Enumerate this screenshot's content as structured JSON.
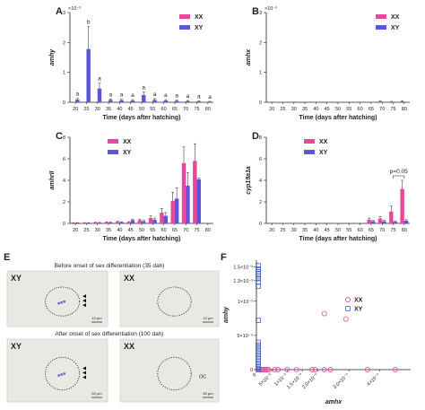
{
  "chart_data": [
    {
      "id": "A",
      "type": "bar",
      "panel_label": "A",
      "ylabel": "amhy",
      "xlabel": "Time (days after hatching)",
      "y_exponent": "×10⁻³",
      "ylim": [
        0,
        0.003
      ],
      "yticks": [
        0,
        0.001,
        0.002,
        0.003
      ],
      "ytick_labels": [
        "0",
        "1",
        "2",
        "3"
      ],
      "categories": [
        "20",
        "25",
        "30",
        "35",
        "40",
        "45",
        "50",
        "55",
        "60",
        "65",
        "70",
        "75",
        "80"
      ],
      "series": [
        {
          "name": "XX",
          "color": "#e8479d",
          "values": [
            0,
            0,
            0,
            0,
            0,
            0,
            0,
            0,
            0,
            0,
            0,
            0,
            0
          ],
          "err": [
            0,
            0,
            0,
            0,
            0,
            0,
            0,
            0,
            0,
            0,
            0,
            0,
            0
          ]
        },
        {
          "name": "XY",
          "color": "#5a56d6",
          "values": [
            9e-05,
            0.00178,
            0.00046,
            8e-05,
            7e-05,
            6e-05,
            0.00024,
            8e-05,
            6e-05,
            5e-05,
            4e-05,
            3e-05,
            2e-05
          ],
          "err": [
            4e-05,
            0.00075,
            0.00018,
            3e-05,
            3e-05,
            3e-05,
            0.0001,
            4e-05,
            3e-05,
            2e-05,
            2e-05,
            1e-05,
            1e-05
          ]
        }
      ],
      "annotations": [
        {
          "category": "20",
          "text": "a"
        },
        {
          "category": "25",
          "text": "b"
        },
        {
          "category": "30",
          "text": "a"
        },
        {
          "category": "35",
          "text": "a"
        },
        {
          "category": "40",
          "text": "a"
        },
        {
          "category": "45",
          "text": "a"
        },
        {
          "category": "50",
          "text": "a"
        },
        {
          "category": "55",
          "text": "a"
        },
        {
          "category": "60",
          "text": "a"
        },
        {
          "category": "65",
          "text": "a"
        },
        {
          "category": "70",
          "text": "a"
        },
        {
          "category": "75",
          "text": "a"
        },
        {
          "category": "80",
          "text": "a"
        }
      ],
      "legend": "top-right"
    },
    {
      "id": "B",
      "type": "bar",
      "panel_label": "B",
      "ylabel": "amhx",
      "xlabel": "Time (days after hatching)",
      "y_exponent": "×10⁻³",
      "ylim": [
        0,
        0.003
      ],
      "yticks": [
        0,
        0.001,
        0.002,
        0.003
      ],
      "ytick_labels": [
        "0",
        "1",
        "2",
        "3"
      ],
      "categories": [
        "20",
        "25",
        "30",
        "35",
        "40",
        "45",
        "50",
        "55",
        "60",
        "65",
        "70",
        "75",
        "80"
      ],
      "series": [
        {
          "name": "XX",
          "color": "#e8479d",
          "values": [
            0,
            0,
            0,
            0,
            0,
            0,
            0,
            0,
            0,
            0,
            3e-05,
            2e-05,
            3e-05
          ],
          "err": [
            0,
            0,
            0,
            0,
            0,
            0,
            0,
            0,
            0,
            0,
            2e-05,
            1e-05,
            2e-05
          ]
        },
        {
          "name": "XY",
          "color": "#5a56d6",
          "values": [
            0,
            0,
            0,
            0,
            0,
            0,
            0,
            0,
            0,
            0,
            0,
            0,
            0
          ],
          "err": [
            0,
            0,
            0,
            0,
            0,
            0,
            0,
            0,
            0,
            0,
            0,
            0,
            0
          ]
        }
      ],
      "legend": "top-right"
    },
    {
      "id": "C",
      "type": "bar",
      "panel_label": "C",
      "ylabel": "amhrII",
      "xlabel": "Time (days after hatching)",
      "ylim": [
        0,
        8
      ],
      "yticks": [
        0,
        2,
        4,
        6,
        8
      ],
      "ytick_labels": [
        "0",
        "2",
        "4",
        "6",
        "8"
      ],
      "categories": [
        "20",
        "25",
        "30",
        "35",
        "40",
        "45",
        "50",
        "55",
        "60",
        "65",
        "70",
        "75",
        "80"
      ],
      "series": [
        {
          "name": "XX",
          "color": "#e8479d",
          "values": [
            0.05,
            0.05,
            0.08,
            0.1,
            0.15,
            0.1,
            0.3,
            0.5,
            1.0,
            2.1,
            5.6,
            5.8,
            0
          ],
          "err": [
            0.02,
            0.02,
            0.03,
            0.04,
            0.05,
            0.05,
            0.1,
            0.2,
            0.4,
            0.8,
            1.5,
            1.6,
            0
          ]
        },
        {
          "name": "XY",
          "color": "#5a56d6",
          "values": [
            0.05,
            0.05,
            0.06,
            0.08,
            0.1,
            0.3,
            0.2,
            0.35,
            0.7,
            2.3,
            3.5,
            4.1,
            0
          ],
          "err": [
            0.02,
            0.02,
            0.03,
            0.03,
            0.05,
            0.1,
            0.08,
            0.15,
            0.3,
            1.0,
            1.2,
            0.1,
            0
          ]
        }
      ],
      "legend": "top-left"
    },
    {
      "id": "D",
      "type": "bar",
      "panel_label": "D",
      "ylabel": "cyp19a1a",
      "xlabel": "Time (days after hatching)",
      "ylim": [
        0,
        8
      ],
      "yticks": [
        0,
        2,
        4,
        6,
        8
      ],
      "ytick_labels": [
        "0",
        "2",
        "4",
        "6",
        "8"
      ],
      "categories": [
        "20",
        "25",
        "30",
        "35",
        "40",
        "45",
        "50",
        "55",
        "60",
        "65",
        "70",
        "75",
        "80"
      ],
      "series": [
        {
          "name": "XX",
          "color": "#e8479d",
          "values": [
            0,
            0,
            0,
            0,
            0,
            0,
            0,
            0,
            0,
            0.35,
            0.45,
            1.1,
            3.2
          ],
          "err": [
            0,
            0,
            0,
            0,
            0,
            0,
            0,
            0,
            0,
            0.15,
            0.2,
            0.5,
            0.8
          ]
        },
        {
          "name": "XY",
          "color": "#5a56d6",
          "values": [
            0,
            0,
            0,
            0,
            0,
            0,
            0,
            0,
            0,
            0.2,
            0.2,
            0.15,
            0.25
          ],
          "err": [
            0,
            0,
            0,
            0,
            0,
            0,
            0,
            0,
            0,
            0.08,
            0.08,
            0.06,
            0.1
          ]
        }
      ],
      "significance": {
        "from": "75",
        "to": "80",
        "text": "p=0.05"
      },
      "legend": "top-left"
    },
    {
      "id": "F",
      "type": "scatter",
      "panel_label": "F",
      "xlabel": "amhx",
      "ylabel": "amhy",
      "xlim": [
        0,
        5e-05
      ],
      "ylim": [
        0,
        0.0016
      ],
      "xticks": [
        0,
        5e-06,
        1e-05,
        1.5e-05,
        2e-05,
        3e-05,
        4e-05
      ],
      "xtick_labels": [
        "0",
        "5×10⁻⁶",
        "1×10⁻⁵",
        "1.5×10⁻⁵",
        "2.0×10⁻⁵",
        "3.0×10⁻⁵",
        "4×10⁻⁵"
      ],
      "yticks": [
        0,
        0.0005,
        0.001,
        0.0013,
        0.0015
      ],
      "ytick_labels": [
        "0",
        "5×10⁻⁴",
        "1×10⁻³",
        "1.3×10⁻³",
        "1.5×10⁻³"
      ],
      "series": [
        {
          "name": "XX",
          "marker": "circle",
          "color": "#e8479d",
          "points": [
            [
              5e-07,
              0
            ],
            [
              1e-06,
              0
            ],
            [
              1.5e-06,
              0
            ],
            [
              2e-06,
              0
            ],
            [
              2.5e-06,
              0
            ],
            [
              3e-06,
              0
            ],
            [
              3.5e-06,
              0
            ],
            [
              4e-06,
              0
            ],
            [
              6e-06,
              0
            ],
            [
              7e-06,
              0
            ],
            [
              1e-05,
              0
            ],
            [
              1.3e-05,
              0
            ],
            [
              1.8e-05,
              0
            ],
            [
              1.9e-05,
              0
            ],
            [
              2.2e-05,
              0
            ],
            [
              2.4e-05,
              0
            ],
            [
              3.6e-05,
              0
            ],
            [
              4.5e-05,
              0
            ],
            [
              2.2e-05,
              0.00082
            ],
            [
              2.9e-05,
              0.00074
            ]
          ]
        },
        {
          "name": "XY",
          "marker": "square",
          "color": "#3d5fc4",
          "points": [
            [
              0,
              0.00152
            ],
            [
              0,
              0.00147
            ],
            [
              0,
              0.00143
            ],
            [
              0,
              0.0014
            ],
            [
              0,
              0.00137
            ],
            [
              0,
              0.00133
            ],
            [
              0,
              0.00128
            ],
            [
              0,
              0.00122
            ],
            [
              0,
              0.00072
            ],
            [
              0,
              0.0004
            ],
            [
              0,
              0.00036
            ],
            [
              0,
              0.00032
            ],
            [
              0,
              0.00028
            ],
            [
              0,
              0.00024
            ],
            [
              0,
              0.0002
            ],
            [
              0,
              0.00016
            ],
            [
              0,
              0.00012
            ],
            [
              0,
              8e-05
            ],
            [
              0,
              4e-05
            ],
            [
              0,
              2e-05
            ],
            [
              0,
              0
            ]
          ]
        }
      ],
      "legend": "right"
    }
  ],
  "micrographs": {
    "panel_label": "E",
    "before_caption": "Before onset of sex differentiation (35 dah)",
    "after_caption": "After onset of sex differentiation (100 dah)",
    "tiles": [
      {
        "sex": "XY",
        "scale": "10 μm"
      },
      {
        "sex": "XX",
        "scale": "10 μm"
      },
      {
        "sex": "XY",
        "scale": "50 μm"
      },
      {
        "sex": "XX",
        "scale": "50 μm",
        "label": "OC"
      }
    ]
  }
}
